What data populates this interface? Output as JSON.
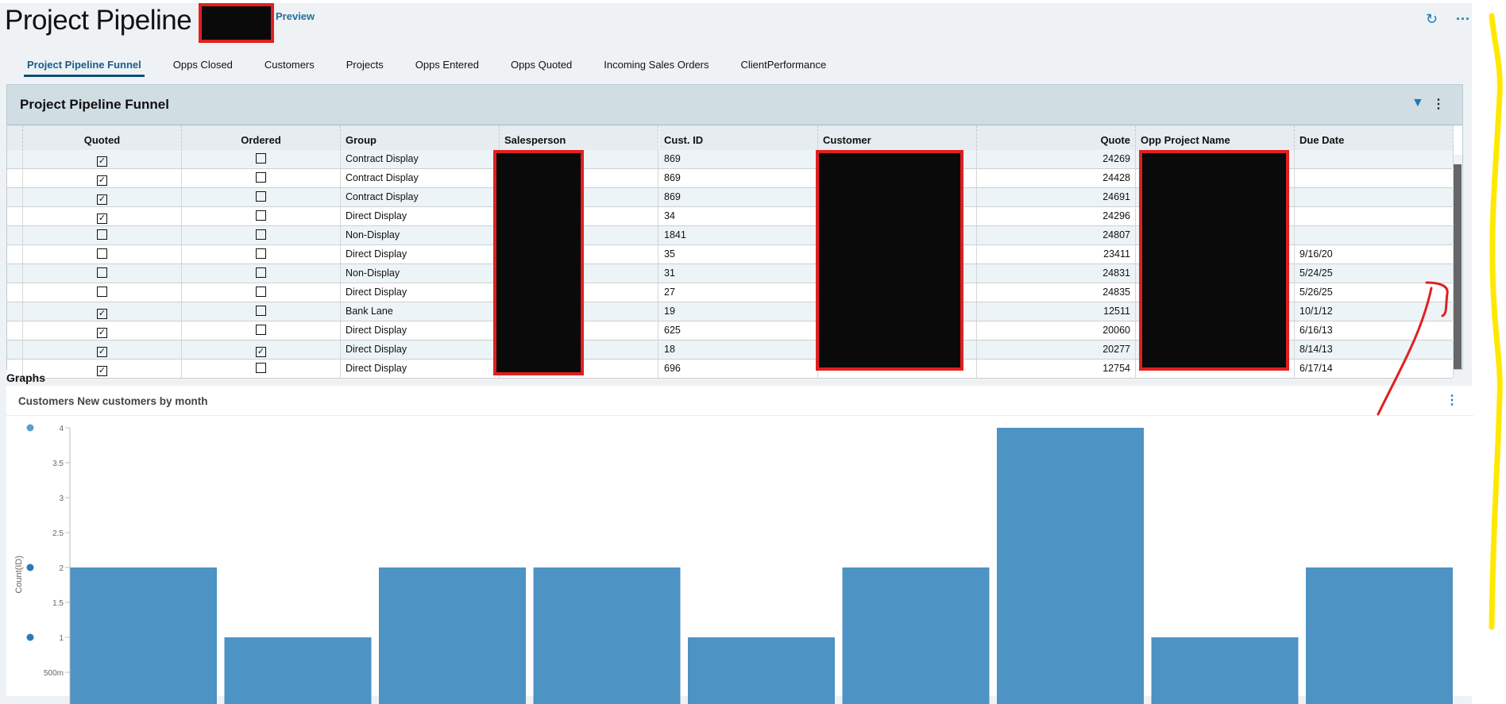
{
  "header": {
    "title": "Project Pipeline -",
    "preview_label": "Preview",
    "icons": [
      "refresh-icon",
      "more-horizontal-icon"
    ]
  },
  "tabs": [
    {
      "label": "Project Pipeline Funnel",
      "active": true
    },
    {
      "label": "Opps Closed",
      "active": false
    },
    {
      "label": "Customers",
      "active": false
    },
    {
      "label": "Projects",
      "active": false
    },
    {
      "label": "Opps Entered",
      "active": false
    },
    {
      "label": "Opps Quoted",
      "active": false
    },
    {
      "label": "Incoming Sales Orders",
      "active": false
    },
    {
      "label": "ClientPerformance",
      "active": false
    }
  ],
  "panel": {
    "title": "Project Pipeline Funnel",
    "icons": [
      "filter-icon",
      "more-vertical-icon"
    ],
    "columns": [
      "Quoted",
      "Ordered",
      "Group",
      "Salesperson",
      "Cust. ID",
      "Customer",
      "Quote",
      "Opp Project Name",
      "Due Date"
    ],
    "rows": [
      {
        "quoted": true,
        "ordered": false,
        "group": "Contract Display",
        "cust_id": "869",
        "quote": "24269",
        "due": ""
      },
      {
        "quoted": true,
        "ordered": false,
        "group": "Contract Display",
        "cust_id": "869",
        "quote": "24428",
        "due": ""
      },
      {
        "quoted": true,
        "ordered": false,
        "group": "Contract Display",
        "cust_id": "869",
        "quote": "24691",
        "due": ""
      },
      {
        "quoted": true,
        "ordered": false,
        "group": "Direct Display",
        "cust_id": "34",
        "quote": "24296",
        "due": ""
      },
      {
        "quoted": false,
        "ordered": false,
        "group": "Non-Display",
        "cust_id": "1841",
        "quote": "24807",
        "due": ""
      },
      {
        "quoted": false,
        "ordered": false,
        "group": "Direct Display",
        "cust_id": "35",
        "quote": "23411",
        "due": "9/16/20"
      },
      {
        "quoted": false,
        "ordered": false,
        "group": "Non-Display",
        "cust_id": "31",
        "quote": "24831",
        "due": "5/24/25"
      },
      {
        "quoted": false,
        "ordered": false,
        "group": "Direct Display",
        "cust_id": "27",
        "quote": "24835",
        "due": "5/26/25"
      },
      {
        "quoted": true,
        "ordered": false,
        "group": "Bank Lane",
        "cust_id": "19",
        "quote": "12511",
        "due": "10/1/12"
      },
      {
        "quoted": true,
        "ordered": false,
        "group": "Direct Display",
        "cust_id": "625",
        "quote": "20060",
        "due": "6/16/13"
      },
      {
        "quoted": true,
        "ordered": true,
        "group": "Direct Display",
        "cust_id": "18",
        "quote": "20277",
        "due": "8/14/13"
      },
      {
        "quoted": true,
        "ordered": false,
        "group": "Direct Display",
        "cust_id": "696",
        "quote": "12754",
        "due": "6/17/14"
      }
    ]
  },
  "graphs": {
    "section_label": "Graphs",
    "card_title": "Customers New customers by month"
  },
  "chart_data": {
    "type": "bar",
    "title": "Customers New customers by month",
    "xlabel": "",
    "ylabel": "Count(ID)",
    "values": [
      2,
      1,
      2,
      2,
      1,
      2,
      4,
      1,
      2
    ],
    "ylim": [
      0,
      4
    ],
    "yticks": [
      0.5,
      1,
      1.5,
      2,
      2.5,
      3,
      3.5,
      4
    ],
    "ytick_labels": [
      "500m",
      "1",
      "1.5",
      "2",
      "2.5",
      "3",
      "3.5",
      "4"
    ],
    "grid": false,
    "bar_color": "#4d93c3",
    "marker_dots_at": [
      4,
      2,
      1
    ]
  },
  "colors": {
    "accent": "#1f78b4",
    "active_tab": "#0e4e73",
    "panel_header": "#d0dde3",
    "redaction": "#0a0a0a",
    "annotation_red": "#e02020",
    "annotation_yellow": "#ffe800"
  }
}
